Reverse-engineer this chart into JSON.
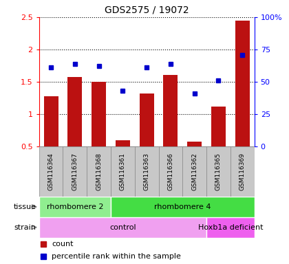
{
  "title": "GDS2575 / 19072",
  "samples": [
    "GSM116364",
    "GSM116367",
    "GSM116368",
    "GSM116361",
    "GSM116363",
    "GSM116366",
    "GSM116362",
    "GSM116365",
    "GSM116369"
  ],
  "counts": [
    1.28,
    1.57,
    1.5,
    0.6,
    1.32,
    1.61,
    0.58,
    1.12,
    2.45
  ],
  "percentiles": [
    61,
    64,
    62,
    43,
    61,
    64,
    41,
    51,
    71
  ],
  "ylim_left": [
    0.5,
    2.5
  ],
  "ylim_right": [
    0,
    100
  ],
  "yticks_left": [
    0.5,
    1.0,
    1.5,
    2.0,
    2.5
  ],
  "ytick_labels_left": [
    "0.5",
    "1",
    "1.5",
    "2",
    "2.5"
  ],
  "ytick_labels_right": [
    "0",
    "25",
    "50",
    "75",
    "100%"
  ],
  "yticks_right": [
    0,
    25,
    50,
    75,
    100
  ],
  "tissue_groups": [
    {
      "label": "rhombomere 2",
      "start": 0,
      "end": 3,
      "color": "#90ee90"
    },
    {
      "label": "rhombomere 4",
      "start": 3,
      "end": 9,
      "color": "#44dd44"
    }
  ],
  "strain_groups": [
    {
      "label": "control",
      "start": 0,
      "end": 7,
      "color": "#f0a0f0"
    },
    {
      "label": "Hoxb1a deficient",
      "start": 7,
      "end": 9,
      "color": "#ee60ee"
    }
  ],
  "bar_color": "#bb1111",
  "dot_color": "#0000cc",
  "cell_color": "#c8c8c8",
  "cell_border": "#888888",
  "plot_bg": "#ffffff",
  "grid_color": "#555555",
  "tissue_label": "tissue",
  "strain_label": "strain",
  "legend_count": "count",
  "legend_pct": "percentile rank within the sample"
}
